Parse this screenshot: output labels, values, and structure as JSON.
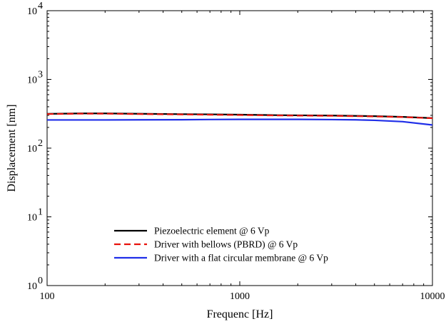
{
  "chart_data": {
    "type": "line",
    "xlabel": "Frequenc [Hz]",
    "ylabel": "Displacement [nm]",
    "xscale": "log",
    "yscale": "log",
    "xlim": [
      100,
      10000
    ],
    "ylim": [
      1,
      10000
    ],
    "x_ticks": [
      {
        "value": 100,
        "label": "100"
      },
      {
        "value": 1000,
        "label": "1000"
      },
      {
        "value": 10000,
        "label": "10000"
      }
    ],
    "y_ticks": [
      {
        "value": 1,
        "base": "10",
        "exp": "0"
      },
      {
        "value": 10,
        "base": "10",
        "exp": "1"
      },
      {
        "value": 100,
        "base": "10",
        "exp": "2"
      },
      {
        "value": 1000,
        "base": "10",
        "exp": "3"
      },
      {
        "value": 10000,
        "base": "10",
        "exp": "4"
      }
    ],
    "grid": false,
    "legend_position": "bottom-left",
    "series": [
      {
        "name": "Piezoelectric element @ 6 Vp",
        "color": "#000000",
        "dash": "solid",
        "x": [
          100,
          150,
          200,
          300,
          500,
          700,
          1000,
          1500,
          2000,
          3000,
          5000,
          7000,
          10000
        ],
        "y": [
          315,
          320,
          320,
          316,
          312,
          310,
          307,
          302,
          300,
          298,
          292,
          285,
          273
        ]
      },
      {
        "name": "Driver with bellows (PBRD) @ 6 Vp",
        "color": "#e8120c",
        "dash": "dashed",
        "x": [
          100,
          150,
          200,
          300,
          500,
          700,
          1000,
          1500,
          2000,
          3000,
          5000,
          7000,
          10000
        ],
        "y": [
          313,
          317,
          317,
          313,
          309,
          306,
          303,
          299,
          297,
          295,
          289,
          283,
          272
        ]
      },
      {
        "name": "Driver with a flat circular membrane @ 6 Vp",
        "color": "#1f2ee8",
        "dash": "solid",
        "x": [
          100,
          200,
          300,
          500,
          700,
          1000,
          1500,
          2000,
          3000,
          4000,
          5000,
          7000,
          10000
        ],
        "y": [
          257,
          257,
          258,
          259,
          261,
          262,
          262,
          262,
          260,
          258,
          254,
          243,
          217
        ]
      }
    ]
  }
}
